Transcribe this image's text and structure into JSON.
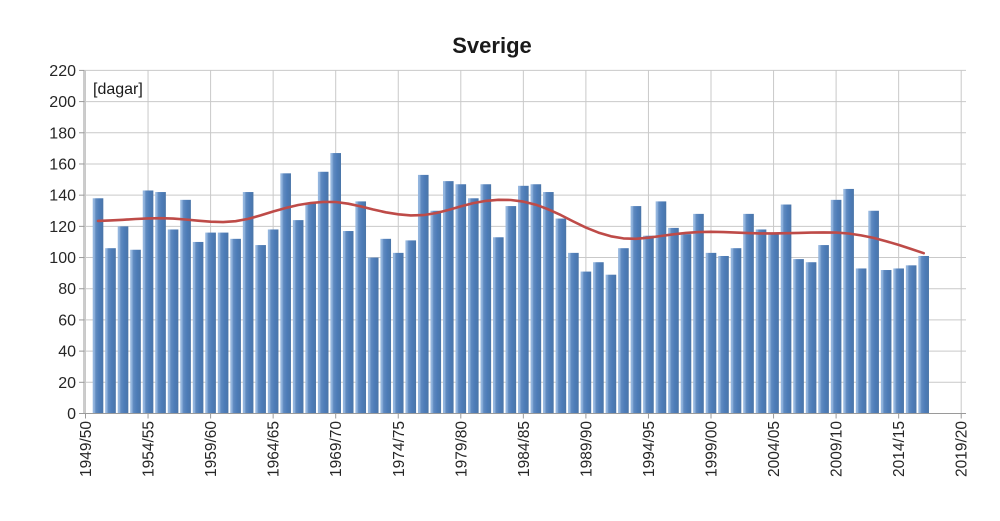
{
  "title": "Sverige",
  "colors": {
    "bar": "#4f81bd",
    "bar_edge_light": "#93b5de",
    "bar_edge_dark": "#4a75a8",
    "trend": "#be4b48",
    "gridline": "#c9c9c9",
    "axis": "#9a9a9a",
    "text": "#262626",
    "background": "#ffffff"
  },
  "chart_data": {
    "type": "bar",
    "title": "Sverige",
    "unit_label": "[dagar]",
    "xlabel": "",
    "ylabel": "[dagar]",
    "ylim": [
      0,
      220
    ],
    "ytick_step": 20,
    "grid": true,
    "legend": false,
    "x_tick_labels": [
      "1949/50",
      "1954/55",
      "1959/60",
      "1964/65",
      "1969/70",
      "1974/75",
      "1979/80",
      "1984/85",
      "1989/90",
      "1994/95",
      "1999/00",
      "2004/05",
      "2009/10",
      "2014/15",
      "2019/20"
    ],
    "x_domain": [
      "1949/50",
      "2019/20"
    ],
    "winters": [
      "1950/51",
      "1951/52",
      "1952/53",
      "1953/54",
      "1954/55",
      "1955/56",
      "1956/57",
      "1957/58",
      "1958/59",
      "1959/60",
      "1960/61",
      "1961/62",
      "1962/63",
      "1963/64",
      "1964/65",
      "1965/66",
      "1966/67",
      "1967/68",
      "1968/69",
      "1969/70",
      "1970/71",
      "1971/72",
      "1972/73",
      "1973/74",
      "1974/75",
      "1975/76",
      "1976/77",
      "1977/78",
      "1978/79",
      "1979/80",
      "1980/81",
      "1981/82",
      "1982/83",
      "1983/84",
      "1984/85",
      "1985/86",
      "1986/87",
      "1987/88",
      "1988/89",
      "1989/90",
      "1990/91",
      "1991/92",
      "1992/93",
      "1993/94",
      "1994/95",
      "1995/96",
      "1996/97",
      "1997/98",
      "1998/99",
      "1999/00",
      "2000/01",
      "2001/02",
      "2002/03",
      "2003/04",
      "2004/05",
      "2005/06",
      "2006/07",
      "2007/08",
      "2008/09",
      "2009/10",
      "2010/11",
      "2011/12",
      "2012/13",
      "2013/14",
      "2014/15",
      "2015/16",
      "2016/17"
    ],
    "values": [
      138,
      106,
      120,
      105,
      143,
      142,
      118,
      137,
      110,
      116,
      116,
      112,
      142,
      108,
      118,
      154,
      124,
      135,
      155,
      167,
      117,
      136,
      100,
      112,
      103,
      111,
      153,
      130,
      149,
      147,
      138,
      147,
      113,
      133,
      146,
      147,
      142,
      125,
      103,
      91,
      97,
      89,
      106,
      133,
      114,
      136,
      119,
      115,
      128,
      103,
      101,
      106,
      128,
      118,
      115,
      134,
      99,
      97,
      108,
      137,
      144,
      93,
      130,
      92,
      93,
      95,
      101
    ],
    "trend_line": [
      123.5,
      123.8,
      124.2,
      124.7,
      125.1,
      125.2,
      125.0,
      124.4,
      123.6,
      123.0,
      122.7,
      123.3,
      124.8,
      127.0,
      129.5,
      131.8,
      133.7,
      135.0,
      135.7,
      135.6,
      134.5,
      132.8,
      130.8,
      129.0,
      127.7,
      127.0,
      127.2,
      128.5,
      130.5,
      132.8,
      134.9,
      136.3,
      137.0,
      136.9,
      135.9,
      133.9,
      130.9,
      127.2,
      123.1,
      119.2,
      116.0,
      113.6,
      112.3,
      112.0,
      112.7,
      113.8,
      114.9,
      115.8,
      116.3,
      116.5,
      116.3,
      116.0,
      115.7,
      115.5,
      115.5,
      115.6,
      115.8,
      116.0,
      116.1,
      116.0,
      115.4,
      114.2,
      112.6,
      110.5,
      108.1,
      105.5,
      102.8
    ]
  }
}
